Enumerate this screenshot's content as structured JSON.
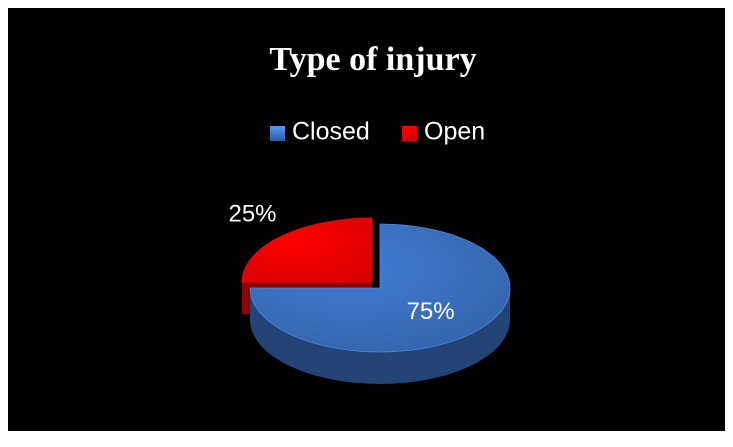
{
  "chart_data": {
    "type": "pie",
    "title": "Type of injury",
    "categories": [
      "Closed",
      "Open"
    ],
    "values": [
      75,
      25
    ],
    "value_labels": [
      "75%",
      "25%"
    ],
    "colors": [
      "#3b72c2",
      "#ff0000"
    ],
    "legend": "top"
  }
}
